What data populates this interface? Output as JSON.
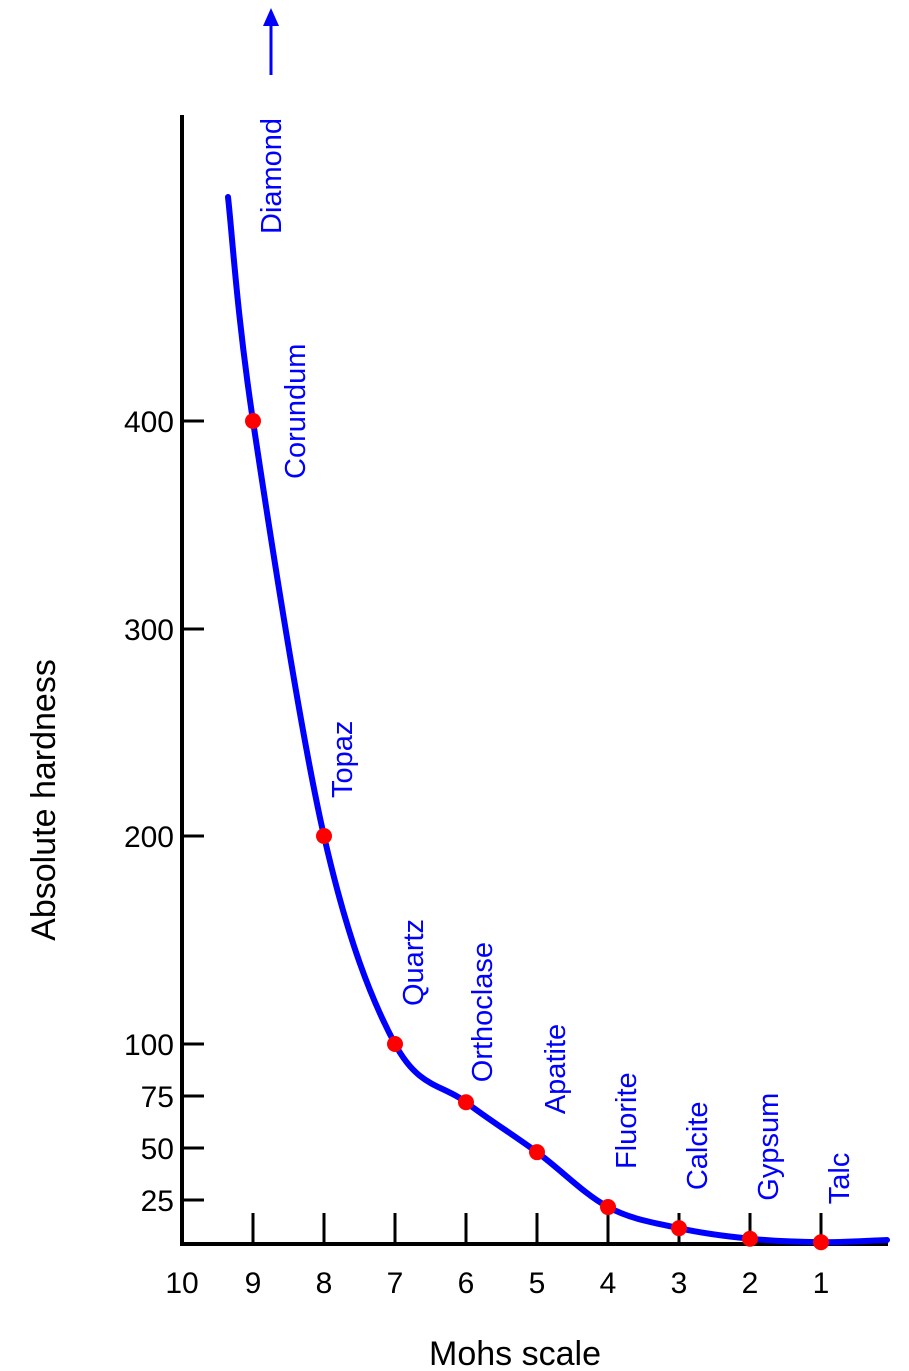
{
  "chart_data": {
    "type": "line",
    "xlabel": "Mohs scale",
    "ylabel": "Absolute hardness",
    "x_ticks": [
      "10",
      "9",
      "8",
      "7",
      "6",
      "5",
      "4",
      "3",
      "2",
      "1"
    ],
    "y_ticks": [
      "25",
      "50",
      "75",
      "100",
      "200",
      "300",
      "400"
    ],
    "x_reversed": true,
    "colors": {
      "curve": "#0000ff",
      "points": "#ff0000",
      "labels": "#0000ff",
      "axes": "#000000"
    },
    "series": [
      {
        "minerals": [
          "Talc",
          "Gypsum",
          "Calcite",
          "Fluorite",
          "Apatite",
          "Orthoclase",
          "Quartz",
          "Topaz",
          "Corundum"
        ],
        "x": [
          1,
          2,
          3,
          4,
          5,
          6,
          7,
          8,
          9
        ],
        "y": [
          1,
          3,
          9,
          21,
          48,
          72,
          100,
          200,
          400
        ]
      }
    ],
    "off_scale_label": "Diamond"
  }
}
